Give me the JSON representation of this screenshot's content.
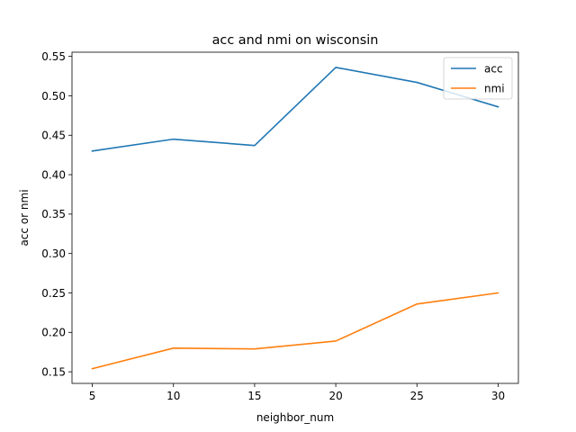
{
  "chart_data": {
    "type": "line",
    "title": "acc and nmi on wisconsin",
    "xlabel": "neighbor_num",
    "ylabel": "acc or nmi",
    "x": [
      5,
      10,
      15,
      20,
      25,
      30
    ],
    "xticks": [
      5,
      10,
      15,
      20,
      25,
      30
    ],
    "yticks": [
      0.15,
      0.2,
      0.25,
      0.3,
      0.35,
      0.4,
      0.45,
      0.5,
      0.55
    ],
    "xlim": [
      3.75,
      31.25
    ],
    "ylim": [
      0.1353,
      0.5553
    ],
    "grid": false,
    "legend_position": "top-right",
    "series": [
      {
        "name": "acc",
        "color": "#1f77b4",
        "values": [
          0.43,
          0.445,
          0.437,
          0.536,
          0.517,
          0.486
        ]
      },
      {
        "name": "nmi",
        "color": "#ff7f0e",
        "values": [
          0.154,
          0.18,
          0.179,
          0.189,
          0.236,
          0.25
        ]
      }
    ]
  }
}
